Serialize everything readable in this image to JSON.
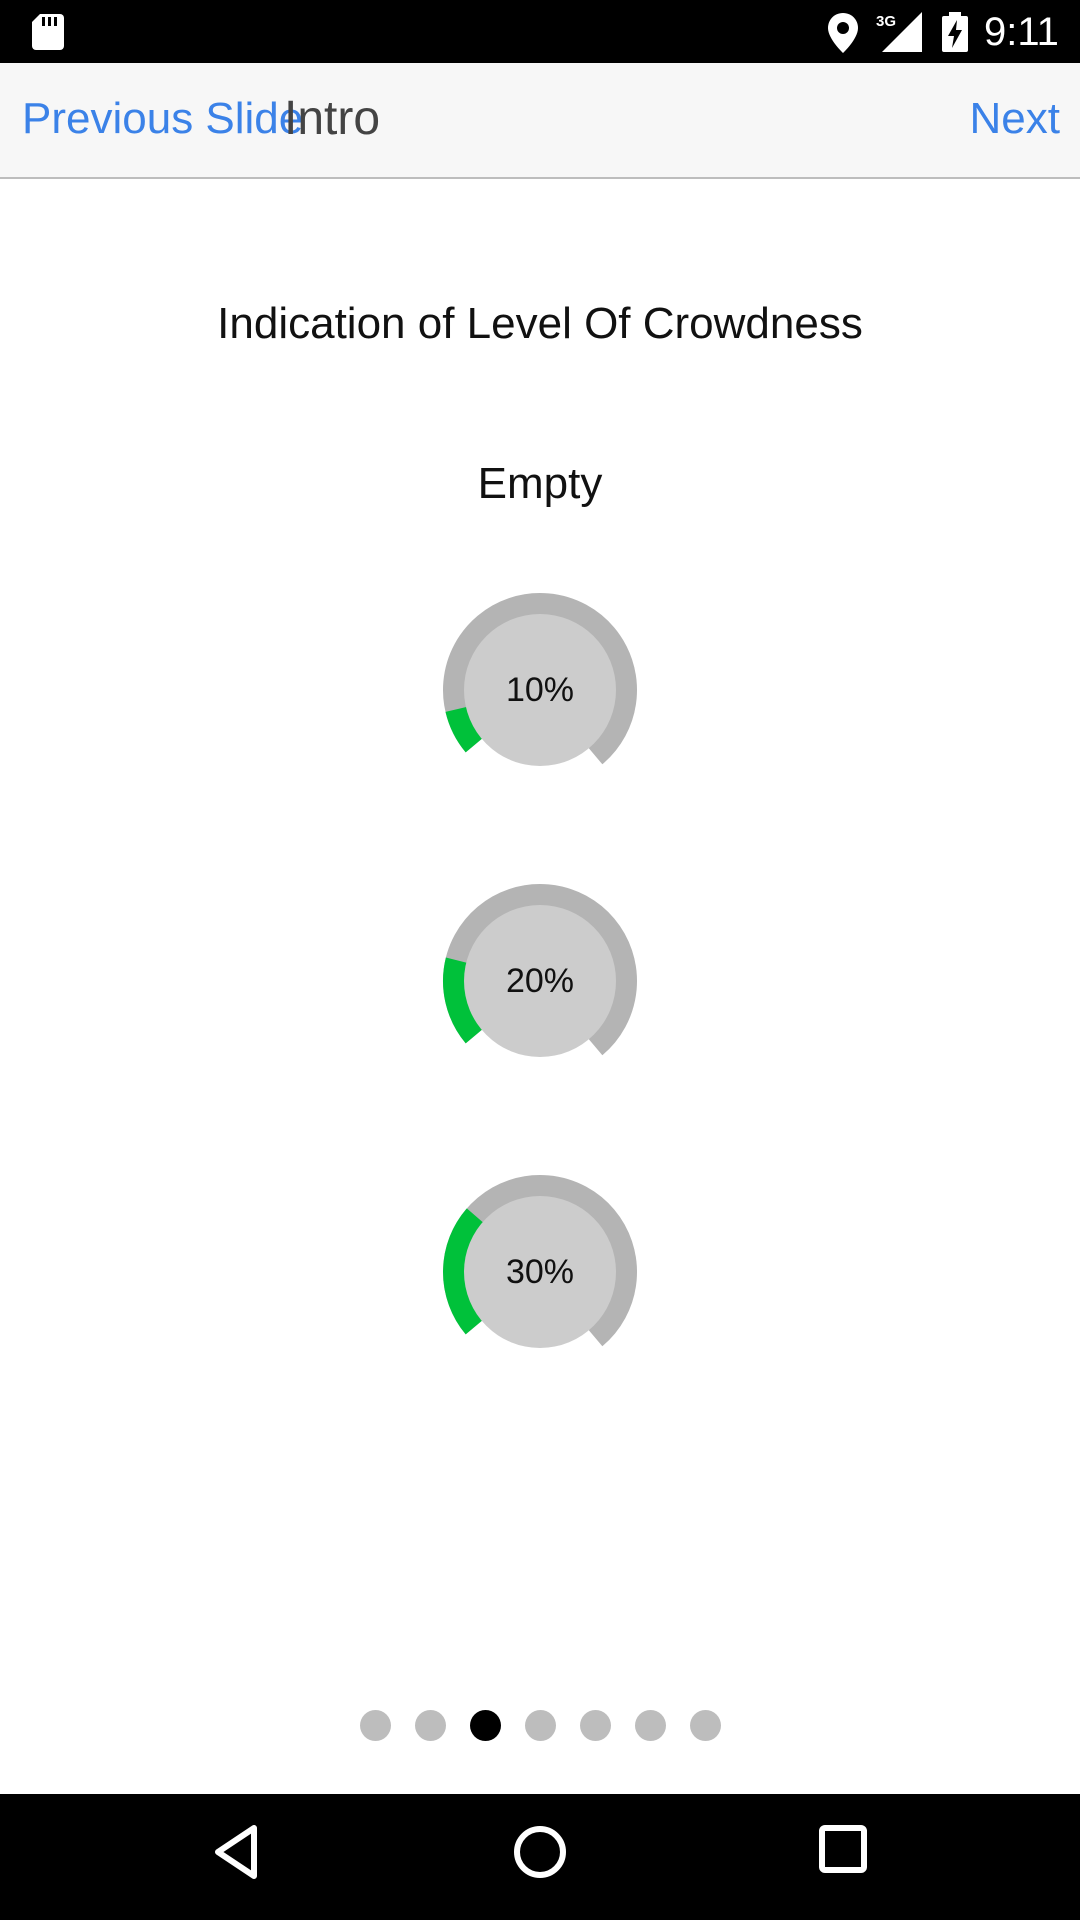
{
  "status_bar": {
    "time": "9:11",
    "icons": [
      "sd-card-icon",
      "location-icon",
      "signal-3g-icon",
      "battery-charging-icon"
    ],
    "network_label": "3G"
  },
  "nav": {
    "prev_label": "Previous Slide",
    "title": "Intro",
    "next_label": "Next"
  },
  "content": {
    "heading": "Indication of Level Of Crowdness",
    "subheading": "Empty",
    "gauges": [
      {
        "label": "10%",
        "value": 10
      },
      {
        "label": "20%",
        "value": 20
      },
      {
        "label": "30%",
        "value": 30
      }
    ]
  },
  "pager": {
    "count": 7,
    "active_index": 2
  },
  "colors": {
    "accent": "#3b82e8",
    "gauge_fill": "#00c13a",
    "gauge_track": "#b4b4b4",
    "gauge_inner": "#cccccc",
    "dot_inactive": "#bdbdbd",
    "dot_active": "#000000"
  },
  "android_nav": {
    "icons": [
      "back-icon",
      "home-icon",
      "recents-icon"
    ]
  }
}
